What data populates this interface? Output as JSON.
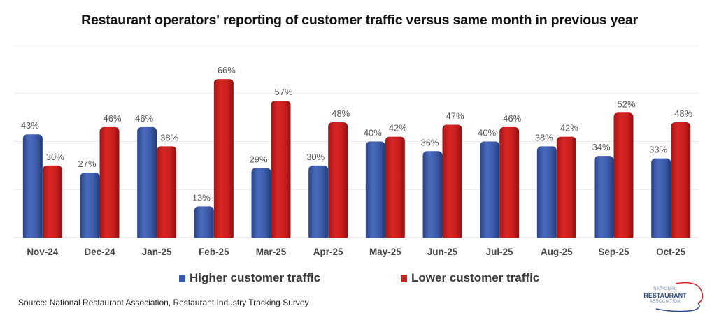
{
  "chart_data": {
    "type": "bar",
    "title": "Restaurant operators' reporting of customer traffic versus same month in previous year",
    "xlabel": "",
    "ylabel": "",
    "ylim": [
      0,
      80
    ],
    "y_gridlines": [
      20,
      40,
      60,
      80
    ],
    "grid": true,
    "y_axis_labels_shown": false,
    "categories": [
      "Nov-24",
      "Dec-24",
      "Jan-25",
      "Feb-25",
      "Mar-25",
      "Apr-25",
      "May-25",
      "Jun-25",
      "Jul-25",
      "Aug-25",
      "Sep-25",
      "Oct-25"
    ],
    "series": [
      {
        "name": "Higher customer traffic",
        "color": "#3b5aa6",
        "values": [
          43,
          27,
          46,
          13,
          29,
          30,
          40,
          36,
          40,
          38,
          34,
          33
        ],
        "labels": [
          "43%",
          "27%",
          "46%",
          "13%",
          "29%",
          "30%",
          "40%",
          "36%",
          "40%",
          "38%",
          "34%",
          "33%"
        ]
      },
      {
        "name": "Lower customer traffic",
        "color": "#c81e1e",
        "values": [
          30,
          46,
          38,
          66,
          57,
          48,
          42,
          47,
          46,
          42,
          52,
          48
        ],
        "labels": [
          "30%",
          "46%",
          "38%",
          "66%",
          "57%",
          "48%",
          "42%",
          "47%",
          "46%",
          "42%",
          "52%",
          "48%"
        ]
      }
    ],
    "legend": {
      "position": "bottom",
      "entries": [
        "Higher customer traffic",
        "Lower customer traffic"
      ]
    }
  },
  "footer": {
    "source": "Source: National Restaurant Association, Restaurant Industry Tracking Survey"
  },
  "logo": {
    "line1": "NATIONAL",
    "line2": "RESTAURANT",
    "line3": "ASSOCIATION"
  }
}
